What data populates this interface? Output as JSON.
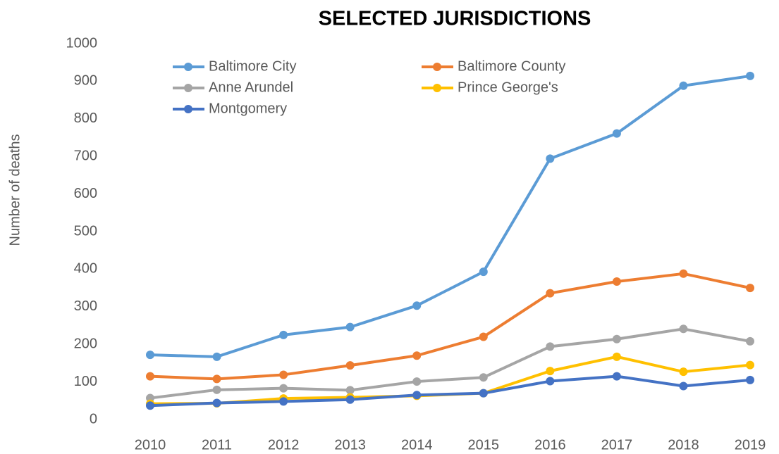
{
  "chart_data": {
    "type": "line",
    "title": "SELECTED JURISDICTIONS",
    "y_label": "Number of deaths",
    "categories": [
      "2010",
      "2011",
      "2012",
      "2013",
      "2014",
      "2015",
      "2016",
      "2017",
      "2018",
      "2019"
    ],
    "series": [
      {
        "name": "Baltimore City",
        "color": "#5b9bd5",
        "values": [
          172,
          167,
          225,
          246,
          303,
          393,
          694,
          761,
          888,
          914
        ]
      },
      {
        "name": "Baltimore County",
        "color": "#ed7d31",
        "values": [
          115,
          108,
          119,
          144,
          170,
          220,
          336,
          367,
          388,
          350
        ]
      },
      {
        "name": "Anne Arundel",
        "color": "#a5a5a5",
        "values": [
          57,
          79,
          83,
          78,
          101,
          112,
          194,
          214,
          241,
          208
        ]
      },
      {
        "name": "Prince George's",
        "color": "#ffc000",
        "values": [
          42,
          43,
          56,
          59,
          63,
          70,
          129,
          167,
          127,
          145
        ]
      },
      {
        "name": "Montgomery",
        "color": "#4472c4",
        "values": [
          37,
          44,
          48,
          53,
          65,
          70,
          102,
          115,
          89,
          105
        ]
      }
    ],
    "ylim": [
      0,
      1000
    ],
    "yticks": [
      0,
      100,
      200,
      300,
      400,
      500,
      600,
      700,
      800,
      900,
      1000
    ],
    "grid": false,
    "legend": "upper left"
  }
}
